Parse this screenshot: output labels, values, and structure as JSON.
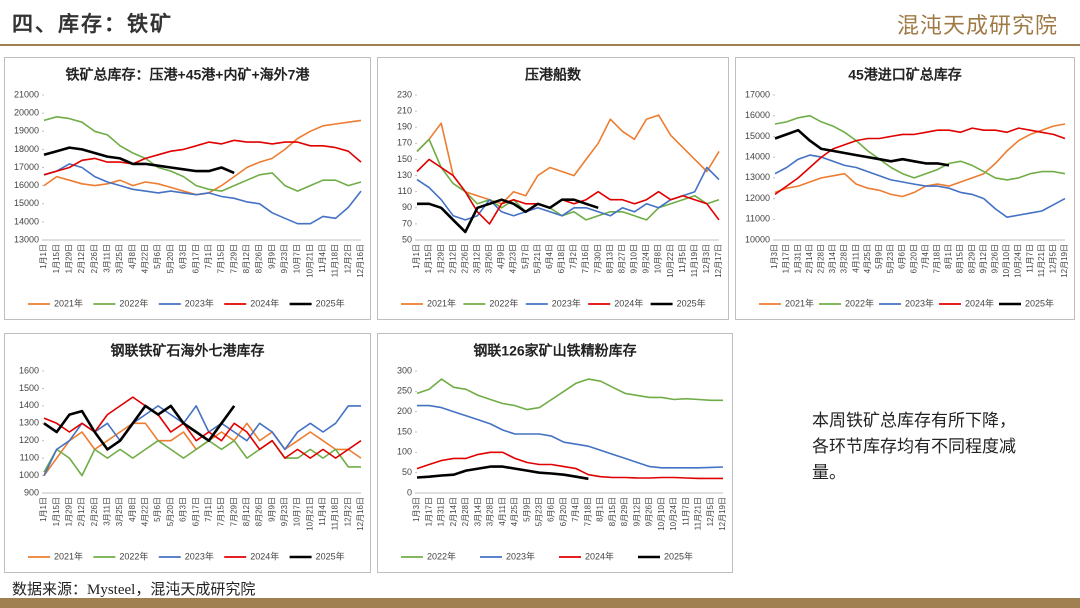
{
  "header": {
    "title": "四、库存：铁矿",
    "logo": "混沌天成研究院"
  },
  "note": "本周铁矿总库存有所下降，各环节库存均有不同程度减量。",
  "source": "数据来源：Mysteel，混沌天成研究院",
  "chart_data": [
    {
      "type": "line",
      "title": "铁矿总库存：压港+45港+内矿+海外7港",
      "grid": false,
      "categories": [
        "1月1日",
        "1月15日",
        "1月29日",
        "2月12日",
        "2月26日",
        "3月11日",
        "3月25日",
        "4月8日",
        "4月22日",
        "5月6日",
        "5月20日",
        "6月3日",
        "6月17日",
        "7月1日",
        "7月15日",
        "7月29日",
        "8月12日",
        "8月26日",
        "9月9日",
        "9月23日",
        "10月7日",
        "10月21日",
        "11月4日",
        "11月18日",
        "12月2日",
        "12月16日"
      ],
      "ylim": [
        13000,
        21000
      ],
      "yticks": [
        13000,
        14000,
        15000,
        16000,
        17000,
        18000,
        19000,
        20000,
        21000
      ],
      "series": [
        {
          "name": "2021年",
          "color": "#ed7d31",
          "values": [
            16000,
            16500,
            16300,
            16100,
            16000,
            16100,
            16300,
            16000,
            16200,
            16100,
            15900,
            15700,
            15500,
            15600,
            16000,
            16500,
            17000,
            17300,
            17500,
            18000,
            18600,
            19000,
            19300,
            19400,
            19500,
            19600
          ]
        },
        {
          "name": "2022年",
          "color": "#70ad47",
          "values": [
            19600,
            19800,
            19700,
            19500,
            19000,
            18800,
            18200,
            17800,
            17500,
            17000,
            16800,
            16500,
            16000,
            15800,
            15700,
            16000,
            16300,
            16600,
            16700,
            16000,
            15700,
            16000,
            16300,
            16300,
            16000,
            16200
          ]
        },
        {
          "name": "2023年",
          "color": "#4472c4",
          "values": [
            16600,
            16800,
            17200,
            17000,
            16500,
            16200,
            16000,
            15800,
            15700,
            15600,
            15700,
            15600,
            15500,
            15600,
            15400,
            15300,
            15100,
            15000,
            14500,
            14200,
            13900,
            13900,
            14300,
            14200,
            14800,
            15700
          ]
        },
        {
          "name": "2024年",
          "color": "#e00000",
          "values": [
            16600,
            16800,
            17000,
            17400,
            17500,
            17300,
            17300,
            17200,
            17500,
            17700,
            17900,
            18000,
            18200,
            18400,
            18300,
            18500,
            18400,
            18400,
            18300,
            18400,
            18400,
            18200,
            18200,
            18100,
            17900,
            17300
          ]
        },
        {
          "name": "2025年",
          "color": "#000000",
          "values": [
            17700,
            17900,
            18100,
            18000,
            17800,
            17600,
            17500,
            17200,
            17200,
            17100,
            17000,
            16900,
            16800,
            16800,
            17000,
            16700,
            null,
            null,
            null,
            null,
            null,
            null,
            null,
            null,
            null,
            null
          ]
        }
      ]
    },
    {
      "type": "line",
      "title": "压港船数",
      "grid": false,
      "categories": [
        "1月1日",
        "1月15日",
        "1月29日",
        "2月12日",
        "2月26日",
        "3月12日",
        "3月26日",
        "4月9日",
        "4月23日",
        "5月7日",
        "5月21日",
        "6月4日",
        "6月18日",
        "7月2日",
        "7月16日",
        "7月30日",
        "8月13日",
        "8月27日",
        "9月10日",
        "9月24日",
        "10月8日",
        "10月22日",
        "11月5日",
        "11月19日",
        "12月3日",
        "12月17日"
      ],
      "ylim": [
        50,
        230
      ],
      "yticks": [
        50,
        70,
        90,
        110,
        130,
        150,
        170,
        190,
        210,
        230
      ],
      "series": [
        {
          "name": "2021年",
          "color": "#ed7d31",
          "values": [
            160,
            175,
            195,
            130,
            110,
            105,
            100,
            95,
            110,
            105,
            130,
            140,
            135,
            130,
            150,
            170,
            200,
            185,
            175,
            200,
            205,
            180,
            165,
            150,
            135,
            160
          ]
        },
        {
          "name": "2022年",
          "color": "#70ad47",
          "values": [
            160,
            175,
            140,
            120,
            110,
            95,
            100,
            90,
            100,
            85,
            95,
            90,
            80,
            85,
            75,
            80,
            85,
            85,
            80,
            75,
            90,
            95,
            100,
            105,
            95,
            100
          ]
        },
        {
          "name": "2023年",
          "color": "#4472c4",
          "values": [
            125,
            115,
            100,
            80,
            75,
            80,
            100,
            85,
            80,
            85,
            90,
            85,
            80,
            90,
            90,
            85,
            80,
            90,
            85,
            95,
            90,
            100,
            105,
            110,
            140,
            125
          ]
        },
        {
          "name": "2024年",
          "color": "#e00000",
          "values": [
            135,
            150,
            140,
            130,
            110,
            85,
            70,
            95,
            100,
            95,
            95,
            90,
            100,
            95,
            100,
            110,
            100,
            100,
            95,
            100,
            110,
            100,
            105,
            100,
            95,
            75
          ]
        },
        {
          "name": "2025年",
          "color": "#000000",
          "values": [
            95,
            95,
            90,
            75,
            60,
            90,
            95,
            100,
            95,
            85,
            95,
            90,
            100,
            100,
            95,
            90,
            null,
            null,
            null,
            null,
            null,
            null,
            null,
            null,
            null,
            null
          ]
        }
      ]
    },
    {
      "type": "line",
      "title": "45港进口矿总库存",
      "grid": false,
      "categories": [
        "1月3日",
        "1月17日",
        "1月31日",
        "2月14日",
        "2月28日",
        "3月14日",
        "3月28日",
        "4月11日",
        "4月25日",
        "5月9日",
        "5月23日",
        "6月6日",
        "6月20日",
        "7月4日",
        "7月18日",
        "8月1日",
        "8月15日",
        "8月29日",
        "9月12日",
        "9月26日",
        "10月10日",
        "10月24日",
        "11月7日",
        "11月21日",
        "12月5日",
        "12月19日"
      ],
      "ylim": [
        10000,
        17000
      ],
      "yticks": [
        10000,
        11000,
        12000,
        13000,
        14000,
        15000,
        16000,
        17000
      ],
      "series": [
        {
          "name": "2021年",
          "color": "#ed7d31",
          "values": [
            12300,
            12500,
            12600,
            12800,
            13000,
            13100,
            13200,
            12700,
            12500,
            12400,
            12200,
            12100,
            12300,
            12600,
            12700,
            12600,
            12800,
            13000,
            13200,
            13700,
            14300,
            14800,
            15100,
            15300,
            15500,
            15600
          ]
        },
        {
          "name": "2022年",
          "color": "#70ad47",
          "values": [
            15600,
            15700,
            15900,
            16000,
            15700,
            15500,
            15200,
            14800,
            14300,
            13900,
            13500,
            13200,
            13000,
            13200,
            13400,
            13700,
            13800,
            13600,
            13300,
            13000,
            12900,
            13000,
            13200,
            13300,
            13300,
            13200
          ]
        },
        {
          "name": "2023年",
          "color": "#4472c4",
          "values": [
            13200,
            13500,
            13900,
            14100,
            14000,
            13800,
            13600,
            13500,
            13300,
            13100,
            12900,
            12800,
            12700,
            12600,
            12600,
            12500,
            12300,
            12200,
            12000,
            11500,
            11100,
            11200,
            11300,
            11400,
            11700,
            12000
          ]
        },
        {
          "name": "2024年",
          "color": "#e00000",
          "values": [
            12200,
            12600,
            13000,
            13500,
            14000,
            14400,
            14600,
            14800,
            14900,
            14900,
            15000,
            15100,
            15100,
            15200,
            15300,
            15300,
            15200,
            15400,
            15300,
            15300,
            15200,
            15400,
            15300,
            15200,
            15100,
            14900
          ]
        },
        {
          "name": "2025年",
          "color": "#000000",
          "values": [
            14900,
            15100,
            15300,
            14800,
            14400,
            14300,
            14200,
            14100,
            14000,
            13900,
            13800,
            13900,
            13800,
            13700,
            13700,
            13600,
            null,
            null,
            null,
            null,
            null,
            null,
            null,
            null,
            null,
            null
          ]
        }
      ]
    },
    {
      "type": "line",
      "title": "钢联铁矿石海外七港库存",
      "grid": false,
      "categories": [
        "1月1日",
        "1月15日",
        "1月29日",
        "2月12日",
        "2月26日",
        "3月11日",
        "3月25日",
        "4月8日",
        "4月22日",
        "5月6日",
        "5月20日",
        "6月3日",
        "6月17日",
        "7月1日",
        "7月15日",
        "7月29日",
        "8月12日",
        "8月26日",
        "9月9日",
        "9月23日",
        "10月7日",
        "10月21日",
        "11月4日",
        "11月18日",
        "12月2日",
        "12月16日"
      ],
      "ylim": [
        900,
        1600
      ],
      "yticks": [
        900,
        1000,
        1100,
        1200,
        1300,
        1400,
        1500,
        1600
      ],
      "series": [
        {
          "name": "2021年",
          "color": "#ed7d31",
          "values": [
            1000,
            1100,
            1200,
            1250,
            1150,
            1200,
            1250,
            1300,
            1300,
            1200,
            1200,
            1250,
            1150,
            1200,
            1250,
            1200,
            1300,
            1200,
            1250,
            1150,
            1200,
            1250,
            1200,
            1150,
            1150,
            1100
          ]
        },
        {
          "name": "2022年",
          "color": "#70ad47",
          "values": [
            1020,
            1150,
            1100,
            1000,
            1150,
            1100,
            1150,
            1100,
            1150,
            1200,
            1150,
            1100,
            1150,
            1200,
            1150,
            1200,
            1100,
            1150,
            1200,
            1100,
            1100,
            1150,
            1100,
            1150,
            1050,
            1050
          ]
        },
        {
          "name": "2023年",
          "color": "#4472c4",
          "values": [
            1000,
            1150,
            1200,
            1300,
            1250,
            1300,
            1200,
            1300,
            1350,
            1400,
            1350,
            1300,
            1400,
            1250,
            1300,
            1250,
            1200,
            1300,
            1250,
            1150,
            1250,
            1300,
            1250,
            1300,
            1400,
            1400
          ]
        },
        {
          "name": "2024年",
          "color": "#e00000",
          "values": [
            1330,
            1300,
            1250,
            1300,
            1250,
            1350,
            1400,
            1450,
            1400,
            1350,
            1250,
            1300,
            1200,
            1250,
            1200,
            1300,
            1250,
            1150,
            1200,
            1100,
            1150,
            1100,
            1150,
            1100,
            1150,
            1200
          ]
        },
        {
          "name": "2025年",
          "color": "#000000",
          "values": [
            1300,
            1250,
            1350,
            1370,
            1250,
            1150,
            1200,
            1300,
            1400,
            1350,
            1400,
            1300,
            1250,
            1200,
            1300,
            1400,
            null,
            null,
            null,
            null,
            null,
            null,
            null,
            null,
            null,
            null
          ]
        }
      ]
    },
    {
      "type": "line",
      "title": "钢联126家矿山铁精粉库存",
      "grid": false,
      "categories": [
        "1月3日",
        "1月17日",
        "1月31日",
        "2月14日",
        "2月28日",
        "3月14日",
        "3月28日",
        "4月11日",
        "4月25日",
        "5月9日",
        "5月23日",
        "6月6日",
        "6月20日",
        "7月4日",
        "7月18日",
        "8月1日",
        "8月15日",
        "8月29日",
        "9月12日",
        "9月26日",
        "10月10日",
        "10月24日",
        "11月7日",
        "11月21日",
        "12月5日",
        "12月19日"
      ],
      "ylim": [
        0,
        300
      ],
      "yticks": [
        0,
        50,
        100,
        150,
        200,
        250,
        300
      ],
      "series": [
        {
          "name": "2022年",
          "color": "#70ad47",
          "values": [
            245,
            255,
            280,
            260,
            255,
            240,
            230,
            220,
            215,
            205,
            210,
            230,
            250,
            270,
            280,
            275,
            260,
            245,
            240,
            235,
            235,
            230,
            232,
            230,
            228,
            228
          ]
        },
        {
          "name": "2023年",
          "color": "#4472c4",
          "values": [
            215,
            215,
            210,
            200,
            190,
            180,
            170,
            155,
            145,
            145,
            145,
            140,
            125,
            120,
            115,
            105,
            95,
            85,
            75,
            65,
            62,
            62,
            62,
            62,
            63,
            64
          ]
        },
        {
          "name": "2024年",
          "color": "#e00000",
          "values": [
            60,
            70,
            80,
            85,
            85,
            95,
            100,
            100,
            85,
            75,
            70,
            70,
            65,
            60,
            45,
            40,
            38,
            38,
            37,
            37,
            38,
            38,
            37,
            36,
            36,
            36
          ]
        },
        {
          "name": "2025年",
          "color": "#000000",
          "values": [
            38,
            40,
            43,
            45,
            55,
            60,
            65,
            65,
            60,
            55,
            50,
            48,
            45,
            40,
            35,
            null,
            null,
            null,
            null,
            null,
            null,
            null,
            null,
            null,
            null,
            null
          ]
        }
      ]
    }
  ]
}
